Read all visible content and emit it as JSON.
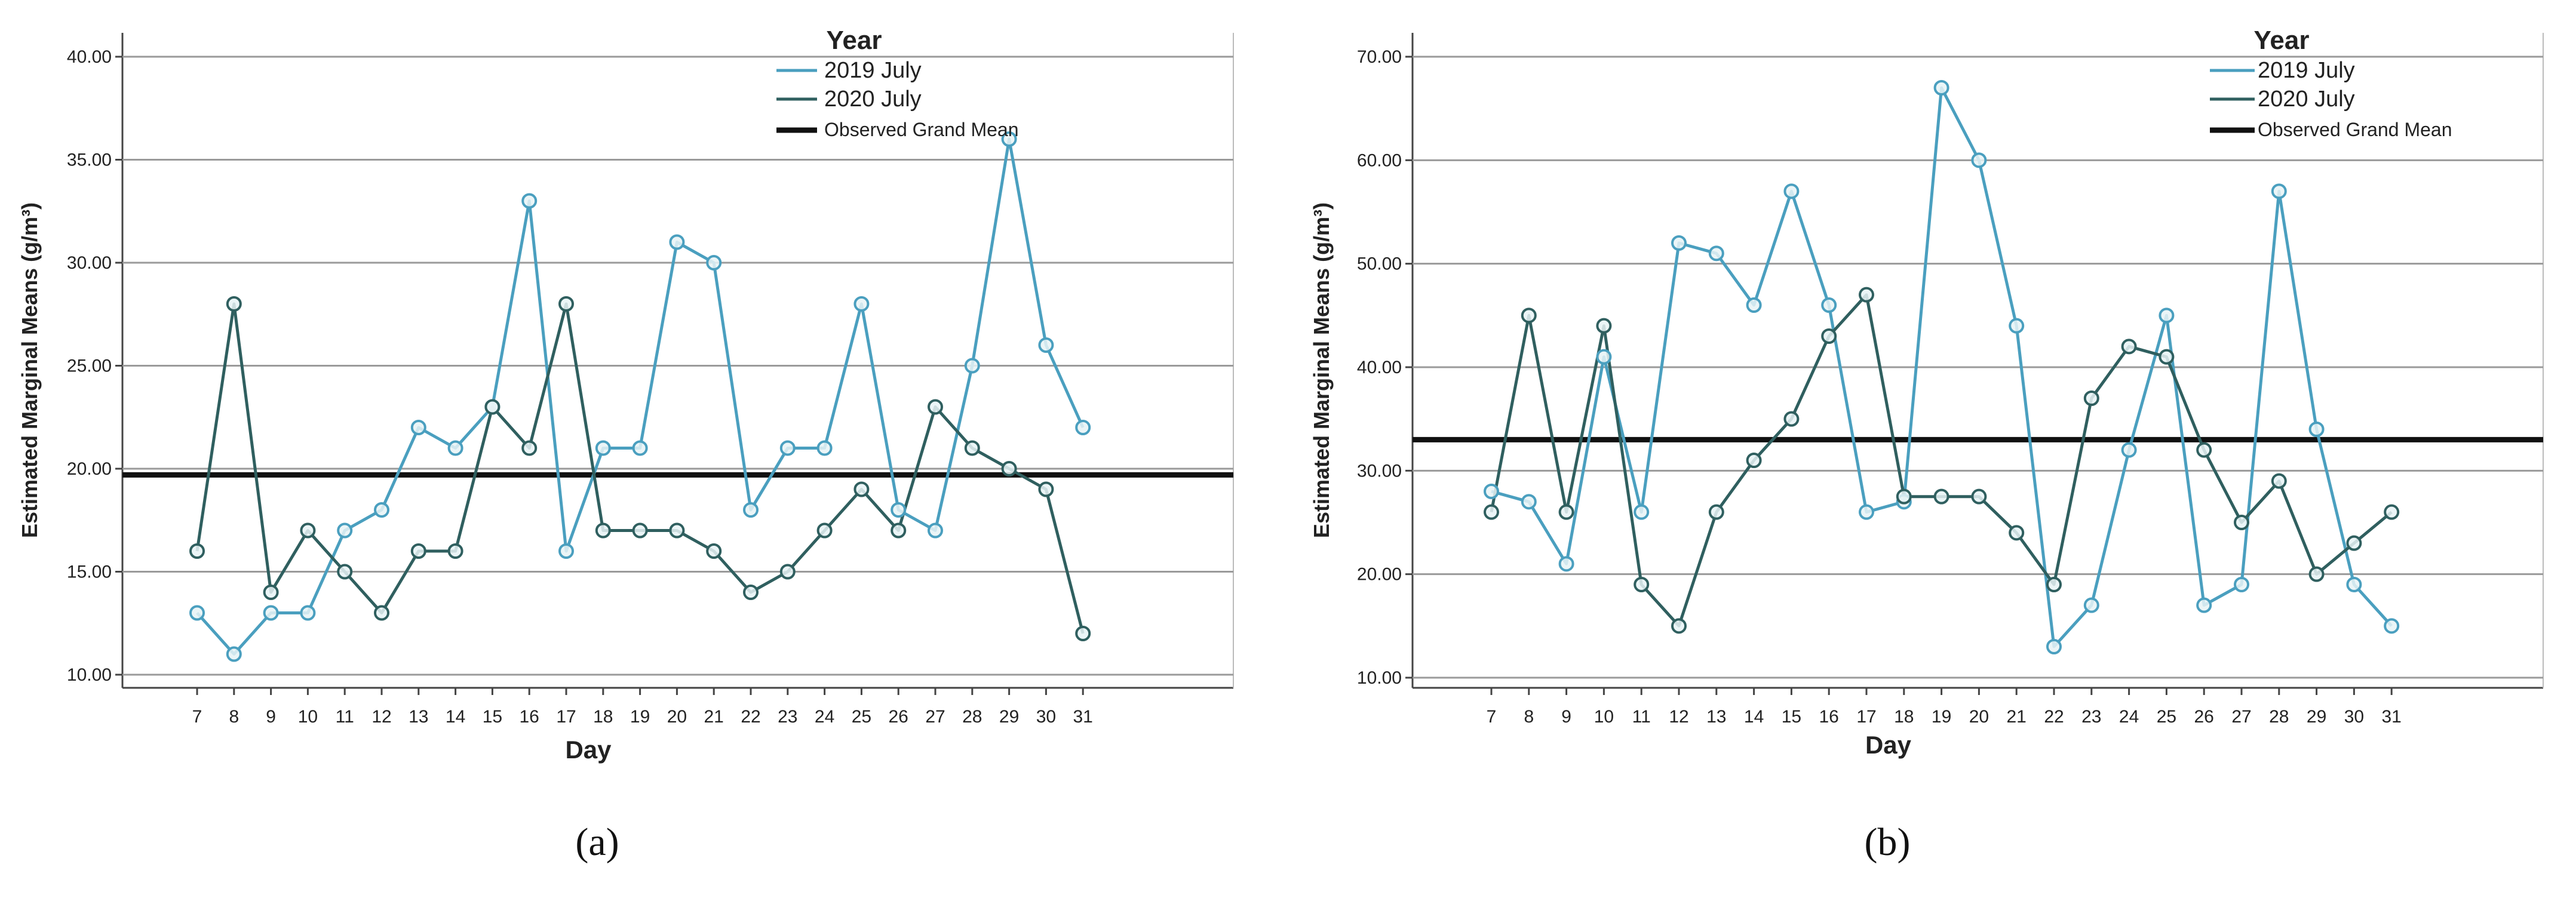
{
  "chart_data": [
    {
      "type": "line",
      "panel_label": "(a)",
      "xlabel": "Day",
      "ylabel": "Estimated Marginal Means (g/m³)",
      "ylim": [
        10,
        40
      ],
      "yticks": [
        "10.00",
        "15.00",
        "20.00",
        "25.00",
        "30.00",
        "35.00",
        "40.00"
      ],
      "categories": [
        "7",
        "8",
        "9",
        "10",
        "11",
        "12",
        "13",
        "14",
        "15",
        "16",
        "17",
        "18",
        "19",
        "20",
        "21",
        "22",
        "23",
        "24",
        "25",
        "26",
        "27",
        "28",
        "29",
        "30",
        "31"
      ],
      "legend": {
        "title": "Year",
        "position": "top-right"
      },
      "series": [
        {
          "name": "2019 July",
          "color": "#4a9fbf",
          "values": [
            13,
            11,
            13,
            13,
            17,
            18,
            22,
            21,
            23,
            33,
            16,
            21,
            21,
            31,
            30,
            18,
            21,
            21,
            28,
            18,
            17,
            25,
            36,
            26,
            22
          ]
        },
        {
          "name": "2020 July",
          "color": "#2f5f5f",
          "values": [
            16,
            28,
            14,
            17,
            15,
            13,
            16,
            16,
            23,
            21,
            28,
            17,
            17,
            17,
            16,
            14,
            15,
            17,
            19,
            17,
            23,
            21,
            20,
            19,
            12
          ]
        }
      ],
      "reference_line": {
        "name": "Observed Grand Mean",
        "value": 19.7,
        "color": "#111111"
      }
    },
    {
      "type": "line",
      "panel_label": "(b)",
      "xlabel": "Day",
      "ylabel": "Estimated Marginal Means (g/m³)",
      "ylim": [
        10,
        70
      ],
      "yticks": [
        "10.00",
        "20.00",
        "30.00",
        "40.00",
        "50.00",
        "60.00",
        "70.00"
      ],
      "categories": [
        "7",
        "8",
        "9",
        "10",
        "11",
        "12",
        "13",
        "14",
        "15",
        "16",
        "17",
        "18",
        "19",
        "20",
        "21",
        "22",
        "23",
        "24",
        "25",
        "26",
        "27",
        "28",
        "29",
        "30",
        "31"
      ],
      "legend": {
        "title": "Year",
        "position": "top-right"
      },
      "series": [
        {
          "name": "2019 July",
          "color": "#4a9fbf",
          "values": [
            28,
            27,
            21,
            41,
            26,
            52,
            51,
            46,
            57,
            46,
            26,
            27,
            67,
            60,
            44,
            13,
            17,
            32,
            45,
            17,
            19,
            57,
            34,
            19,
            15
          ]
        },
        {
          "name": "2020 July",
          "color": "#2f5f5f",
          "values": [
            26,
            45,
            26,
            44,
            19,
            15,
            26,
            31,
            35,
            43,
            47,
            27.5,
            27.5,
            27.5,
            24,
            19,
            37,
            42,
            41,
            32,
            25,
            29,
            20,
            23,
            26
          ]
        }
      ],
      "reference_line": {
        "name": "Observed Grand Mean",
        "value": 33,
        "color": "#111111"
      }
    }
  ]
}
